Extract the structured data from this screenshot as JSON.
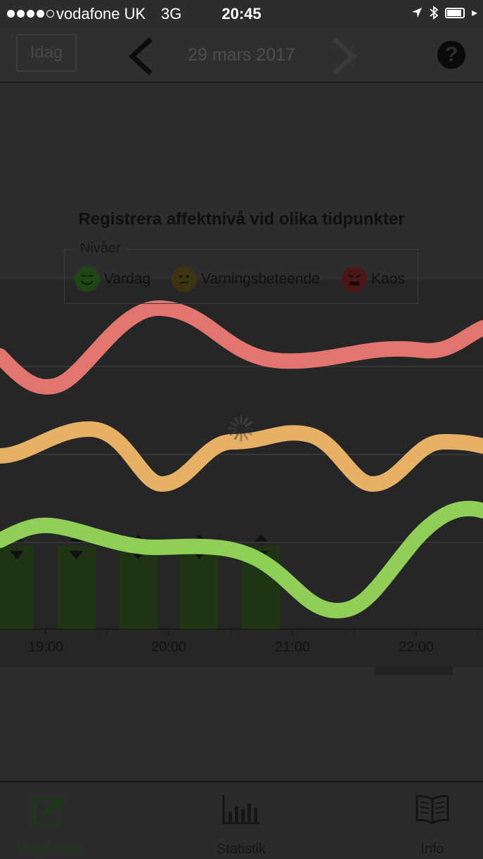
{
  "status_bar": {
    "carrier": "vodafone UK",
    "network": "3G",
    "time": "20:45"
  },
  "nav": {
    "today_label": "Idag",
    "date": "29 mars 2017",
    "help_label": "?"
  },
  "chart": {
    "title": "Registrera affektnivå vid olika tidpunkter",
    "legend_title": "Nivåer",
    "legend": [
      {
        "label": "Vardag",
        "icon": "smile-face-icon",
        "color": "#1f4416"
      },
      {
        "label": "Varningsbeteende",
        "icon": "neutral-face-icon",
        "color": "#3e3510"
      },
      {
        "label": "Kaos",
        "icon": "angry-face-icon",
        "color": "#4a1616"
      }
    ]
  },
  "chart_data": {
    "type": "line",
    "x_ticks": [
      "19:00",
      "20:00",
      "21:00",
      "22:00"
    ],
    "series": [
      {
        "name": "Kaos",
        "color": "#ec7a72"
      },
      {
        "name": "Varningsbeteende",
        "color": "#f0b86a"
      },
      {
        "name": "Vardag",
        "color": "#95d85a"
      }
    ],
    "bar_color": "#1e3412",
    "grid": true
  },
  "tabs": [
    {
      "label": "Registrera",
      "icon": "edit-icon"
    },
    {
      "label": "Statistik",
      "icon": "bar-chart-icon"
    },
    {
      "label": "Info",
      "icon": "book-icon"
    }
  ]
}
